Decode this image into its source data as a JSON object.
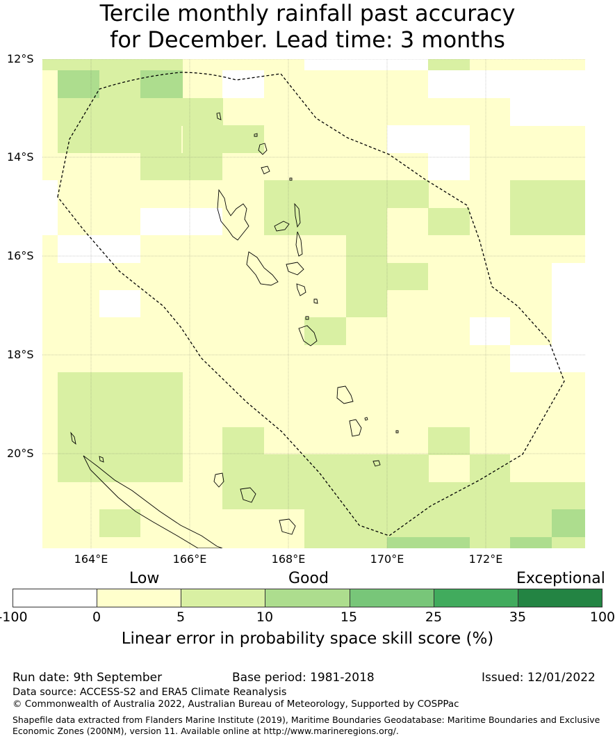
{
  "title_line1": "Tercile monthly rainfall past accuracy",
  "title_line2": "for December. Lead time: 3 months",
  "lat_labels": [
    "12°S",
    "14°S",
    "16°S",
    "18°S",
    "20°S"
  ],
  "lon_labels": [
    "164°E",
    "166°E",
    "168°E",
    "170°E",
    "172°E"
  ],
  "category_labels": {
    "low": "Low",
    "good": "Good",
    "exceptional": "Exceptional"
  },
  "colorbar": {
    "title": "Linear error in probability space skill score (%)",
    "ticks": [
      "-100",
      "0",
      "5",
      "10",
      "15",
      "25",
      "35",
      "100"
    ],
    "colors": [
      "#ffffff",
      "#ffffcc",
      "#d9f0a3",
      "#addd8e",
      "#78c679",
      "#41ab5d",
      "#238443"
    ]
  },
  "footer": {
    "run_date": "Run date: 9th September",
    "base_period": "Base period: 1981-2018",
    "issued": "Issued: 12/01/2022",
    "data_source": "Data source: ACCESS-S2 and ERA5 Climate Reanalysis",
    "copyright": "© Commonwealth of Australia 2022, Australian Bureau of Meteorology, Supported by COSPPac",
    "shapefile_line1": "Shapefile data extracted from Flanders Marine Institute (2019), Maritime Boundaries Geodatabase: Maritime Boundaries and Exclusive",
    "shapefile_line2": "Economic Zones (200NM), version 11. Available online at http://www.marineregions.org/."
  }
}
